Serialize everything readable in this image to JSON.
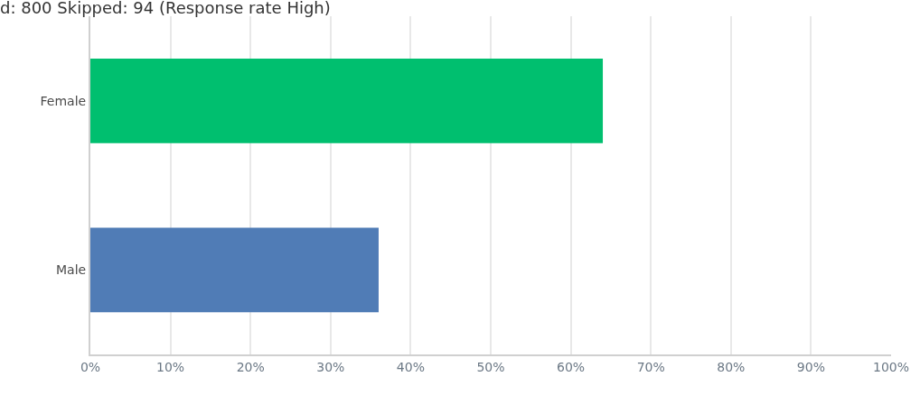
{
  "chart_data": {
    "type": "bar",
    "orientation": "horizontal",
    "title": "d: 800 Skipped: 94 (Response rate High)",
    "categories": [
      "Female",
      "Male"
    ],
    "values": [
      64,
      36
    ],
    "colors": [
      "#00bf6f",
      "#507cb6"
    ],
    "xlim": [
      0,
      100
    ],
    "xticks": [
      {
        "value": 0,
        "label": "0%"
      },
      {
        "value": 10,
        "label": "10%"
      },
      {
        "value": 20,
        "label": "20%"
      },
      {
        "value": 30,
        "label": "30%"
      },
      {
        "value": 40,
        "label": "40%"
      },
      {
        "value": 50,
        "label": "50%"
      },
      {
        "value": 60,
        "label": "60%"
      },
      {
        "value": 70,
        "label": "70%"
      },
      {
        "value": 80,
        "label": "80%"
      },
      {
        "value": 90,
        "label": "90%"
      },
      {
        "value": 100,
        "label": "100%"
      }
    ],
    "grid": "x"
  }
}
